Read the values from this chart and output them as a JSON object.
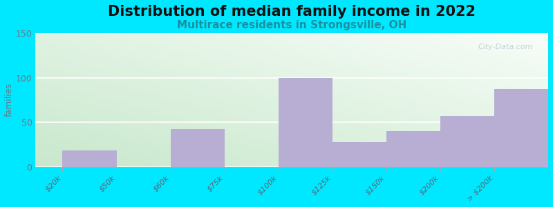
{
  "title": "Distribution of median family income in 2022",
  "subtitle": "Multirace residents in Strongsville, OH",
  "bin_edges": [
    0,
    1,
    2,
    3,
    4,
    5,
    6,
    7,
    8,
    9
  ],
  "tick_labels": [
    "$20k",
    "$50k",
    "$60k",
    "$75k",
    "$100k",
    "$125k",
    "$150k",
    "$200k",
    "> $200k"
  ],
  "bar_heights": [
    18,
    0,
    42,
    0,
    100,
    28,
    40,
    57,
    87
  ],
  "bar_color": "#b8aed4",
  "background_outer": "#00e8ff",
  "ylabel": "families",
  "ylim": [
    0,
    150
  ],
  "yticks": [
    0,
    50,
    100,
    150
  ],
  "title_fontsize": 15,
  "subtitle_fontsize": 11,
  "subtitle_color": "#1a8fa0",
  "watermark": "City-Data.com",
  "grad_top_color": "#f5faf8",
  "grad_bottom_left_color": "#d8eedd"
}
